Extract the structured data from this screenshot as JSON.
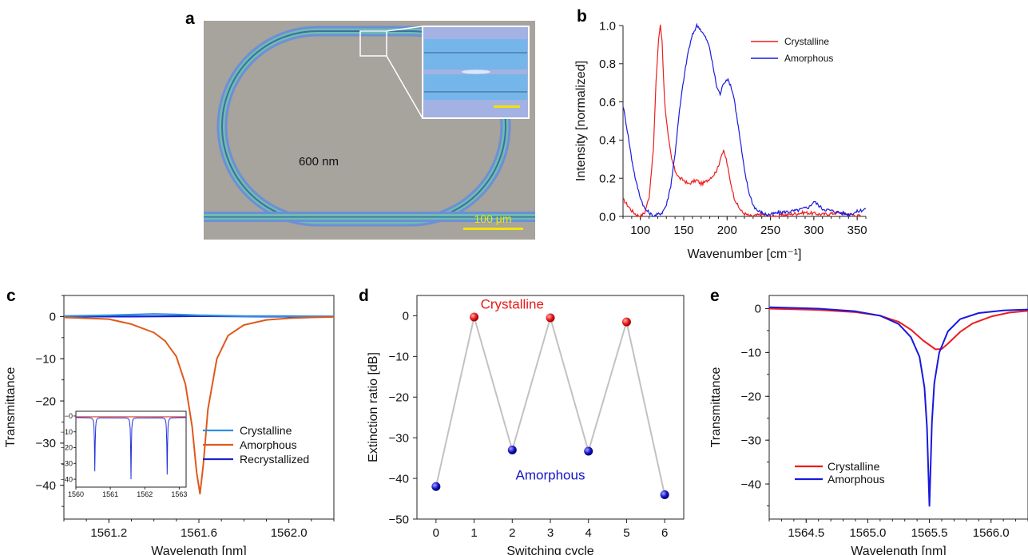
{
  "panels": {
    "a": {
      "label": "a",
      "center_text": "600 nm",
      "scalebar_text": "100 μm",
      "colors": {
        "background": "#a7a39d",
        "ring_outer": "#6aa6d6",
        "ring_inner": "#56a3a0",
        "scalebar": "#f2e400",
        "inset_bg": "#9fb3e6",
        "waveguide": "#71b6ea"
      }
    },
    "b": {
      "label": "b"
    },
    "c": {
      "label": "c"
    },
    "d": {
      "label": "d"
    },
    "e": {
      "label": "e"
    }
  },
  "chart_data": [
    {
      "id": "b",
      "type": "line",
      "xlabel": "Wavenumber [cm⁻¹]",
      "ylabel": "Intensity [normalized]",
      "xlim": [
        80,
        360
      ],
      "ylim": [
        0,
        1.0
      ],
      "xticks": [
        100,
        150,
        200,
        250,
        300,
        350
      ],
      "yticks": [
        0.0,
        0.2,
        0.4,
        0.6,
        0.8,
        1.0
      ],
      "ytick_labels": [
        "0.0",
        "0.2",
        "0.4",
        "0.6",
        "0.8",
        "1.0"
      ],
      "legend_position": "top-right",
      "series": [
        {
          "name": "Crystalline",
          "color": "#ee1c1c",
          "x": [
            80,
            85,
            90,
            95,
            100,
            105,
            110,
            115,
            118,
            121,
            123,
            125,
            128,
            132,
            136,
            140,
            145,
            150,
            155,
            160,
            165,
            170,
            175,
            180,
            185,
            190,
            193,
            196,
            199,
            203,
            208,
            213,
            218,
            222,
            228,
            240,
            255,
            270,
            290,
            310,
            330,
            355
          ],
          "y": [
            0.09,
            0.06,
            0.03,
            0.01,
            0.0,
            0.02,
            0.1,
            0.35,
            0.7,
            0.93,
            1.0,
            0.92,
            0.6,
            0.42,
            0.3,
            0.24,
            0.2,
            0.19,
            0.17,
            0.18,
            0.19,
            0.17,
            0.18,
            0.2,
            0.22,
            0.26,
            0.32,
            0.34,
            0.3,
            0.2,
            0.1,
            0.05,
            0.02,
            0.01,
            0.0,
            0.01,
            0.0,
            0.01,
            0.02,
            0.01,
            0.02,
            0.0
          ]
        },
        {
          "name": "Amorphous",
          "color": "#1a1ae0",
          "x": [
            80,
            85,
            90,
            95,
            100,
            105,
            110,
            115,
            120,
            125,
            130,
            135,
            140,
            145,
            150,
            155,
            160,
            165,
            168,
            172,
            176,
            180,
            184,
            188,
            192,
            196,
            200,
            204,
            208,
            212,
            216,
            220,
            225,
            230,
            235,
            240,
            245,
            250,
            260,
            280,
            295,
            300,
            305,
            310,
            320,
            340,
            360
          ],
          "y": [
            0.58,
            0.45,
            0.3,
            0.18,
            0.1,
            0.04,
            0.02,
            0.0,
            0.01,
            0.02,
            0.06,
            0.16,
            0.33,
            0.55,
            0.72,
            0.86,
            0.95,
            1.0,
            0.99,
            0.96,
            0.93,
            0.88,
            0.78,
            0.68,
            0.64,
            0.7,
            0.72,
            0.69,
            0.62,
            0.5,
            0.37,
            0.24,
            0.13,
            0.06,
            0.03,
            0.02,
            0.01,
            0.01,
            0.02,
            0.03,
            0.05,
            0.08,
            0.06,
            0.04,
            0.03,
            0.01,
            0.04
          ]
        }
      ]
    },
    {
      "id": "c",
      "type": "line",
      "xlabel": "Wavelength [nm]",
      "ylabel": "Transmittance",
      "xlim": [
        1561.0,
        1562.2
      ],
      "ylim": [
        -48,
        5
      ],
      "xticks": [
        1561.2,
        1561.6,
        1562.0
      ],
      "xtick_labels": [
        "1561.2",
        "1561.6",
        "1562.0"
      ],
      "yticks": [
        0,
        -10,
        -20,
        -30,
        -40
      ],
      "ytick_labels": [
        "0",
        "−10",
        "−20",
        "−30",
        "−40"
      ],
      "legend_position": "right",
      "series": [
        {
          "name": "Crystalline",
          "color": "#2b8fe0",
          "x": [
            1561.0,
            1561.2,
            1561.4,
            1561.5,
            1561.6,
            1561.7,
            1561.8,
            1562.0,
            1562.2
          ],
          "y": [
            0.1,
            0.3,
            0.6,
            0.5,
            0.3,
            0.2,
            0.1,
            0.1,
            0.0
          ]
        },
        {
          "name": "Amorphous",
          "color": "#e0591c",
          "x": [
            1561.0,
            1561.2,
            1561.3,
            1561.4,
            1561.45,
            1561.5,
            1561.54,
            1561.57,
            1561.59,
            1561.605,
            1561.62,
            1561.64,
            1561.68,
            1561.73,
            1561.8,
            1561.9,
            1562.0,
            1562.1,
            1562.2
          ],
          "y": [
            -0.2,
            -0.6,
            -1.8,
            -3.8,
            -5.8,
            -9.5,
            -16,
            -26,
            -37,
            -42,
            -35,
            -22,
            -10,
            -4.5,
            -2,
            -0.8,
            -0.4,
            -0.2,
            -0.1
          ]
        },
        {
          "name": "Recrystallized",
          "color": "#1a22d0",
          "x": [
            1561.0,
            1561.3,
            1561.6,
            1561.9,
            1562.2
          ],
          "y": [
            0.0,
            0.0,
            0.1,
            0.0,
            0.0
          ]
        }
      ]
    },
    {
      "id": "c-inset",
      "type": "line",
      "xlim": [
        1560,
        1563.2
      ],
      "ylim": [
        -45,
        3
      ],
      "xticks": [
        1560,
        1561,
        1562,
        1563
      ],
      "xtick_labels": [
        "1560",
        "1561",
        "1562",
        "1563"
      ],
      "yticks": [
        0,
        -10,
        -20,
        -30,
        -40
      ],
      "ytick_labels": [
        "−0",
        "−10",
        "−20",
        "−30",
        "−40"
      ],
      "series": [
        {
          "name": "Crystalline",
          "color": "#e03a2a",
          "dips": [],
          "x": [
            1560,
            1563.2
          ],
          "y": [
            -0.5,
            -0.5
          ]
        },
        {
          "name": "Recrystallized",
          "color": "#2230d8",
          "dips": [
            [
              1560.55,
              -35
            ],
            [
              1561.6,
              -40
            ],
            [
              1562.65,
              -37
            ]
          ]
        }
      ]
    },
    {
      "id": "d",
      "type": "line",
      "xlabel": "Switching cycle",
      "ylabel": "Extinction ratio [dB]",
      "xlim": [
        -0.5,
        6.5
      ],
      "ylim": [
        -50,
        5
      ],
      "xticks": [
        0,
        1,
        2,
        3,
        4,
        5,
        6
      ],
      "yticks": [
        0,
        -10,
        -20,
        -30,
        -40,
        -50
      ],
      "ytick_labels": [
        "0",
        "−10",
        "−20",
        "−30",
        "−40",
        "−50"
      ],
      "annotations": [
        {
          "text": "Crystalline",
          "color": "#e81818"
        },
        {
          "text": "Amorphous",
          "color": "#1515c8"
        }
      ],
      "x": [
        0,
        1,
        2,
        3,
        4,
        5,
        6
      ],
      "y": [
        -42,
        -0.3,
        -33,
        -0.5,
        -33.3,
        -1.5,
        -44
      ],
      "point_states": [
        "amorphous",
        "crystalline",
        "amorphous",
        "crystalline",
        "amorphous",
        "crystalline",
        "amorphous"
      ],
      "colors": {
        "line": "#c2c2c2",
        "crystalline": "#e81818",
        "amorphous": "#1515c8"
      }
    },
    {
      "id": "e",
      "type": "line",
      "xlabel": "Wavelength [nm]",
      "ylabel": "Transmittance",
      "xlim": [
        1564.2,
        1566.3
      ],
      "ylim": [
        -48,
        3
      ],
      "xticks": [
        1564.5,
        1565.0,
        1565.5,
        1566.0
      ],
      "xtick_labels": [
        "1564.5",
        "1565.0",
        "1565.5",
        "1566.0"
      ],
      "yticks": [
        0,
        -10,
        -20,
        -30,
        -40
      ],
      "ytick_labels": [
        "0",
        "−10",
        "−20",
        "−30",
        "−40"
      ],
      "legend_position": "bottom-left",
      "series": [
        {
          "name": "Crystalline",
          "color": "#ee1c1c",
          "x": [
            1564.2,
            1564.6,
            1564.9,
            1565.1,
            1565.25,
            1565.35,
            1565.45,
            1565.55,
            1565.6,
            1565.65,
            1565.75,
            1565.85,
            1566.0,
            1566.15,
            1566.3
          ],
          "y": [
            0.0,
            -0.3,
            -0.8,
            -1.6,
            -3.0,
            -4.8,
            -7.3,
            -9.3,
            -9.2,
            -8.0,
            -5.3,
            -3.4,
            -1.8,
            -0.9,
            -0.5
          ]
        },
        {
          "name": "Amorphous",
          "color": "#1818e0",
          "x": [
            1564.2,
            1564.6,
            1564.9,
            1565.1,
            1565.25,
            1565.35,
            1565.42,
            1565.46,
            1565.48,
            1565.5,
            1565.52,
            1565.54,
            1565.58,
            1565.65,
            1565.75,
            1565.9,
            1566.1,
            1566.3
          ],
          "y": [
            0.3,
            0.0,
            -0.6,
            -1.6,
            -3.5,
            -6.5,
            -11,
            -18,
            -27,
            -45,
            -26,
            -17,
            -10,
            -5.2,
            -2.4,
            -1.0,
            -0.4,
            -0.2
          ]
        }
      ]
    }
  ]
}
